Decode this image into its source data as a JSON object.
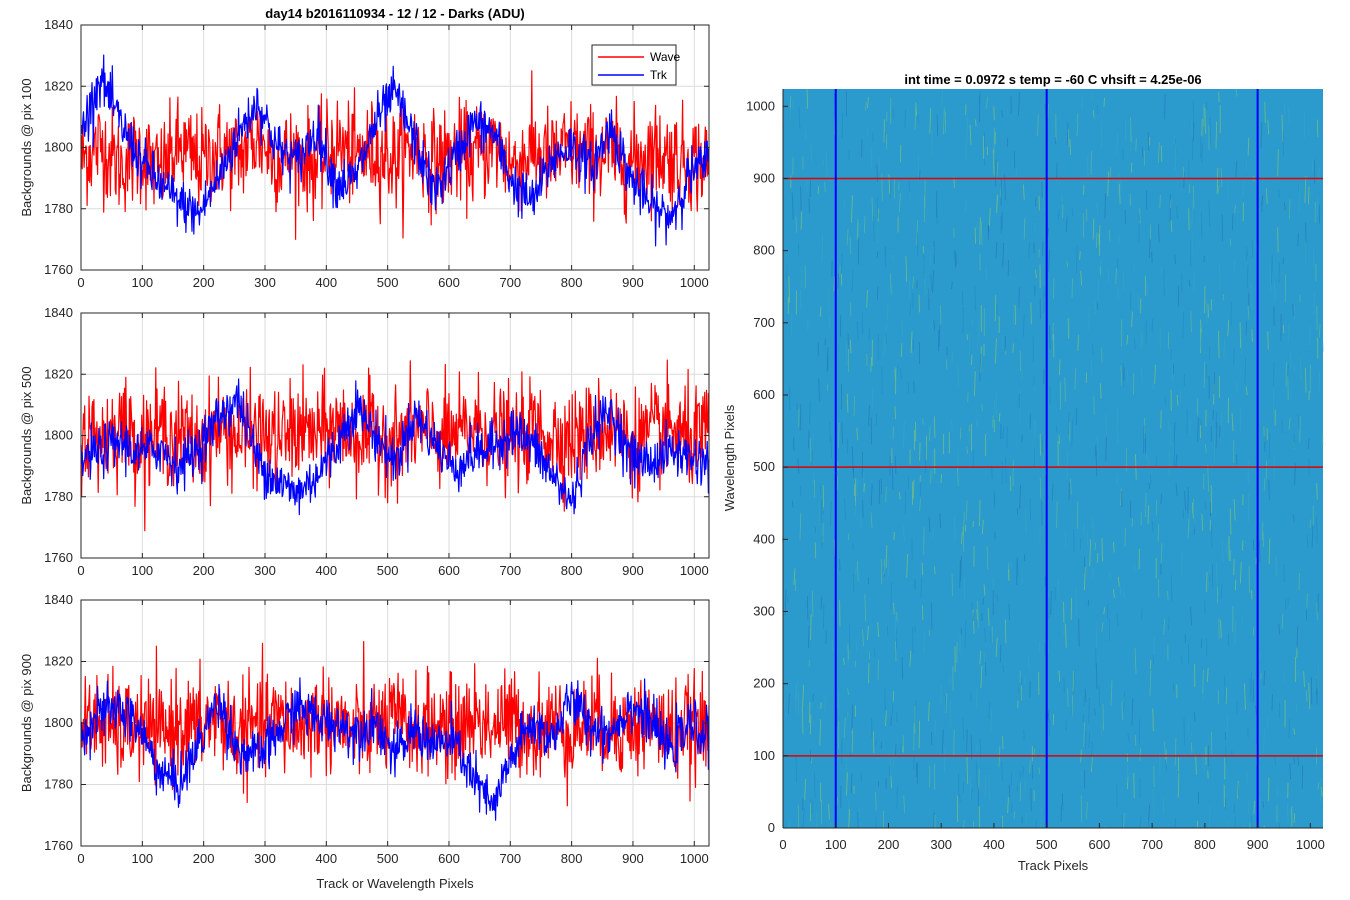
{
  "figure": {
    "left_title": "day14 b2016110934 - 12 / 12 - Darks (ADU)",
    "right_title": "int time = 0.0972 s    temp = -60 C    vhsift = 4.25e-06"
  },
  "colors": {
    "wave": "#ff0000",
    "trk": "#0000ff",
    "grid": "#dcdcdc",
    "axis": "#262626",
    "image_base": "#2a9bcc",
    "image_hot": "#9ccf5a",
    "image_cold": "#2371b8"
  },
  "chart_data": [
    {
      "type": "line",
      "ylabel": "Backgrounds @ pix 100",
      "xlabel": "",
      "xlim": [
        0,
        1024
      ],
      "ylim": [
        1760,
        1840
      ],
      "xticks": [
        0,
        100,
        200,
        300,
        400,
        500,
        600,
        700,
        800,
        900,
        1000
      ],
      "yticks": [
        1760,
        1780,
        1800,
        1820,
        1840
      ],
      "grid": true,
      "legend": {
        "placement": "top-right",
        "entries": [
          "Wave",
          "Trk"
        ]
      },
      "series": [
        {
          "name": "Wave",
          "color": "#ff0000",
          "x": [
            0,
            32,
            64,
            96,
            128,
            160,
            192,
            224,
            256,
            288,
            320,
            352,
            384,
            416,
            448,
            480,
            512,
            544,
            576,
            608,
            640,
            672,
            704,
            736,
            768,
            800,
            832,
            864,
            896,
            928,
            960,
            992,
            1024
          ],
          "values": [
            1796,
            1801,
            1794,
            1798,
            1792,
            1800,
            1795,
            1799,
            1797,
            1803,
            1796,
            1798,
            1794,
            1801,
            1797,
            1799,
            1796,
            1800,
            1795,
            1798,
            1797,
            1801,
            1794,
            1799,
            1796,
            1800,
            1797,
            1798,
            1795,
            1799,
            1797,
            1796,
            1795
          ],
          "noise": 8,
          "min": 1770,
          "max": 1833
        },
        {
          "name": "Trk",
          "color": "#0000ff",
          "x": [
            0,
            32,
            64,
            96,
            128,
            160,
            192,
            224,
            256,
            288,
            320,
            352,
            384,
            416,
            448,
            480,
            512,
            544,
            576,
            608,
            640,
            672,
            704,
            736,
            768,
            800,
            832,
            864,
            896,
            928,
            960,
            992,
            1024
          ],
          "values": [
            1805,
            1823,
            1808,
            1796,
            1788,
            1782,
            1778,
            1790,
            1804,
            1815,
            1800,
            1795,
            1806,
            1788,
            1790,
            1808,
            1818,
            1802,
            1785,
            1796,
            1808,
            1805,
            1788,
            1782,
            1796,
            1801,
            1793,
            1807,
            1790,
            1781,
            1777,
            1791,
            1796
          ],
          "noise": 4,
          "min": 1763,
          "max": 1832
        }
      ]
    },
    {
      "type": "line",
      "ylabel": "Backgrounds @ pix 500",
      "xlabel": "",
      "xlim": [
        0,
        1024
      ],
      "ylim": [
        1760,
        1840
      ],
      "xticks": [
        0,
        100,
        200,
        300,
        400,
        500,
        600,
        700,
        800,
        900,
        1000
      ],
      "yticks": [
        1760,
        1780,
        1800,
        1820,
        1840
      ],
      "grid": true,
      "series": [
        {
          "name": "Wave",
          "color": "#ff0000",
          "x": [
            0,
            32,
            64,
            96,
            128,
            160,
            192,
            224,
            256,
            288,
            320,
            352,
            384,
            416,
            448,
            480,
            512,
            544,
            576,
            608,
            640,
            672,
            704,
            736,
            768,
            800,
            832,
            864,
            896,
            928,
            960,
            992,
            1024
          ],
          "values": [
            1801,
            1799,
            1804,
            1798,
            1802,
            1800,
            1797,
            1803,
            1799,
            1801,
            1798,
            1802,
            1800,
            1803,
            1799,
            1801,
            1798,
            1802,
            1800,
            1799,
            1803,
            1801,
            1798,
            1802,
            1800,
            1799,
            1801,
            1803,
            1798,
            1800,
            1802,
            1799,
            1800
          ],
          "noise": 8,
          "min": 1767,
          "max": 1834
        },
        {
          "name": "Trk",
          "color": "#0000ff",
          "x": [
            0,
            32,
            64,
            96,
            128,
            160,
            192,
            224,
            256,
            288,
            320,
            352,
            384,
            416,
            448,
            480,
            512,
            544,
            576,
            608,
            640,
            672,
            704,
            736,
            768,
            800,
            832,
            864,
            896,
            928,
            960,
            992,
            1024
          ],
          "values": [
            1792,
            1795,
            1798,
            1794,
            1796,
            1790,
            1796,
            1806,
            1812,
            1792,
            1785,
            1781,
            1787,
            1796,
            1810,
            1800,
            1791,
            1807,
            1798,
            1789,
            1794,
            1796,
            1802,
            1797,
            1787,
            1778,
            1801,
            1808,
            1793,
            1791,
            1795,
            1793,
            1791
          ],
          "noise": 4,
          "min": 1765,
          "max": 1820
        }
      ]
    },
    {
      "type": "line",
      "ylabel": "Backgrounds @ pix 900",
      "xlabel": "Track or Wavelength Pixels",
      "xlim": [
        0,
        1024
      ],
      "ylim": [
        1760,
        1840
      ],
      "xticks": [
        0,
        100,
        200,
        300,
        400,
        500,
        600,
        700,
        800,
        900,
        1000
      ],
      "yticks": [
        1760,
        1780,
        1800,
        1820,
        1840
      ],
      "grid": true,
      "series": [
        {
          "name": "Wave",
          "color": "#ff0000",
          "x": [
            0,
            32,
            64,
            96,
            128,
            160,
            192,
            224,
            256,
            288,
            320,
            352,
            384,
            416,
            448,
            480,
            512,
            544,
            576,
            608,
            640,
            672,
            704,
            736,
            768,
            800,
            832,
            864,
            896,
            928,
            960,
            992,
            1024
          ],
          "values": [
            1798,
            1801,
            1797,
            1799,
            1796,
            1800,
            1798,
            1802,
            1797,
            1799,
            1801,
            1798,
            1802,
            1800,
            1797,
            1799,
            1801,
            1798,
            1800,
            1797,
            1802,
            1799,
            1801,
            1798,
            1800,
            1797,
            1801,
            1799,
            1798,
            1800,
            1797,
            1799,
            1796
          ],
          "noise": 8,
          "min": 1767,
          "max": 1837
        },
        {
          "name": "Trk",
          "color": "#0000ff",
          "x": [
            0,
            32,
            64,
            96,
            128,
            160,
            192,
            224,
            256,
            288,
            320,
            352,
            384,
            416,
            448,
            480,
            512,
            544,
            576,
            608,
            640,
            672,
            704,
            736,
            768,
            800,
            832,
            864,
            896,
            928,
            960,
            992,
            1024
          ],
          "values": [
            1797,
            1803,
            1805,
            1798,
            1784,
            1780,
            1793,
            1808,
            1791,
            1789,
            1796,
            1806,
            1801,
            1800,
            1797,
            1801,
            1789,
            1798,
            1793,
            1794,
            1782,
            1772,
            1790,
            1800,
            1795,
            1808,
            1799,
            1797,
            1806,
            1801,
            1791,
            1799,
            1796
          ],
          "noise": 4,
          "min": 1762,
          "max": 1826
        }
      ]
    },
    {
      "type": "heatmap",
      "title": "int time = 0.0972 s    temp = -60 C    vhsift = 4.25e-06",
      "xlabel": "Track Pixels",
      "ylabel": "Wavelength Pixels",
      "xlim": [
        0,
        1024
      ],
      "ylim": [
        0,
        1024
      ],
      "xticks": [
        0,
        100,
        200,
        300,
        400,
        500,
        600,
        700,
        800,
        900,
        1000
      ],
      "yticks": [
        0,
        100,
        200,
        300,
        400,
        500,
        600,
        700,
        800,
        900,
        1000
      ],
      "colormap": "parula",
      "vertical_markers": [
        100,
        500,
        900
      ],
      "horizontal_markers": [
        100,
        500,
        900
      ],
      "vertical_marker_color": "#0000ff",
      "horizontal_marker_color": "#e00000"
    }
  ]
}
